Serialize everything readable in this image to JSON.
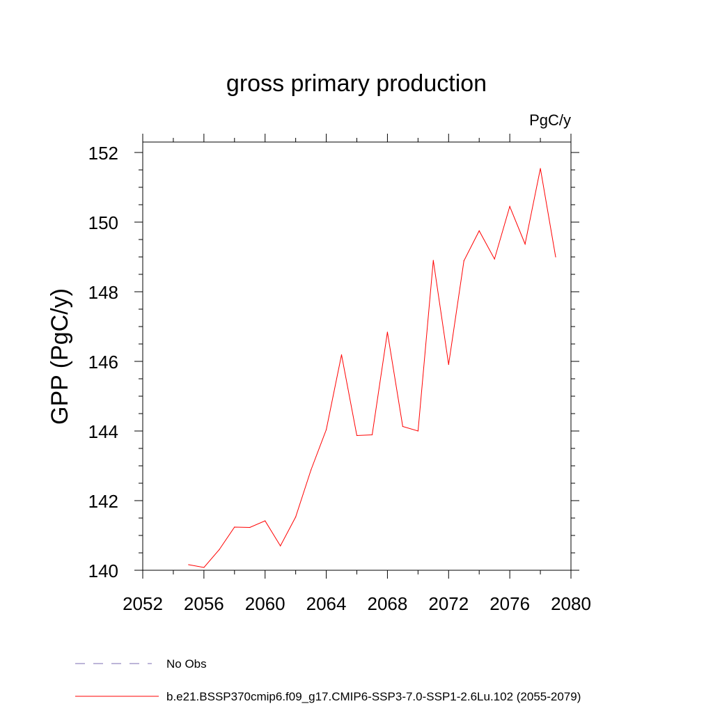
{
  "chart_data": {
    "type": "line",
    "title": "gross primary production",
    "units": "PgC/y",
    "xlabel": "",
    "ylabel": "GPP  (PgC/y)",
    "xlim": [
      2052,
      2080
    ],
    "ylim": [
      140,
      152.3
    ],
    "xticks": [
      2052,
      2056,
      2060,
      2064,
      2068,
      2072,
      2076,
      2080
    ],
    "xtick_labels": [
      "2052",
      "2056",
      "2060",
      "2064",
      "2068",
      "2072",
      "2076",
      "2080"
    ],
    "yticks": [
      140,
      142,
      144,
      146,
      148,
      150,
      152
    ],
    "ytick_labels": [
      "140",
      "142",
      "144",
      "146",
      "148",
      "150",
      "152"
    ],
    "grid": false,
    "legend_placement": "bottom",
    "legend": [
      {
        "label": "No Obs",
        "color": "#7b6bb0",
        "style": "dashed"
      },
      {
        "label": "b.e21.BSSP370cmip6.f09_g17.CMIP6-SSP3-7.0-SSP1-2.6Lu.102 (2055-2079)",
        "color": "#ff0000",
        "style": "solid"
      }
    ],
    "series": [
      {
        "name": "b.e21.BSSP370cmip6.f09_g17.CMIP6-SSP3-7.0-SSP1-2.6Lu.102 (2055-2079)",
        "color": "#ff0000",
        "x": [
          2055,
          2056,
          2057,
          2058,
          2059,
          2060,
          2061,
          2062,
          2063,
          2064,
          2065,
          2066,
          2067,
          2068,
          2069,
          2070,
          2071,
          2072,
          2073,
          2074,
          2075,
          2076,
          2077,
          2078,
          2079
        ],
        "y": [
          140.16,
          140.08,
          140.59,
          141.24,
          141.23,
          141.42,
          140.7,
          141.53,
          142.88,
          144.04,
          146.19,
          143.87,
          143.89,
          146.84,
          144.13,
          144.0,
          148.9,
          145.91,
          148.89,
          149.75,
          148.94,
          150.45,
          149.37,
          151.54,
          149.0
        ]
      }
    ]
  }
}
